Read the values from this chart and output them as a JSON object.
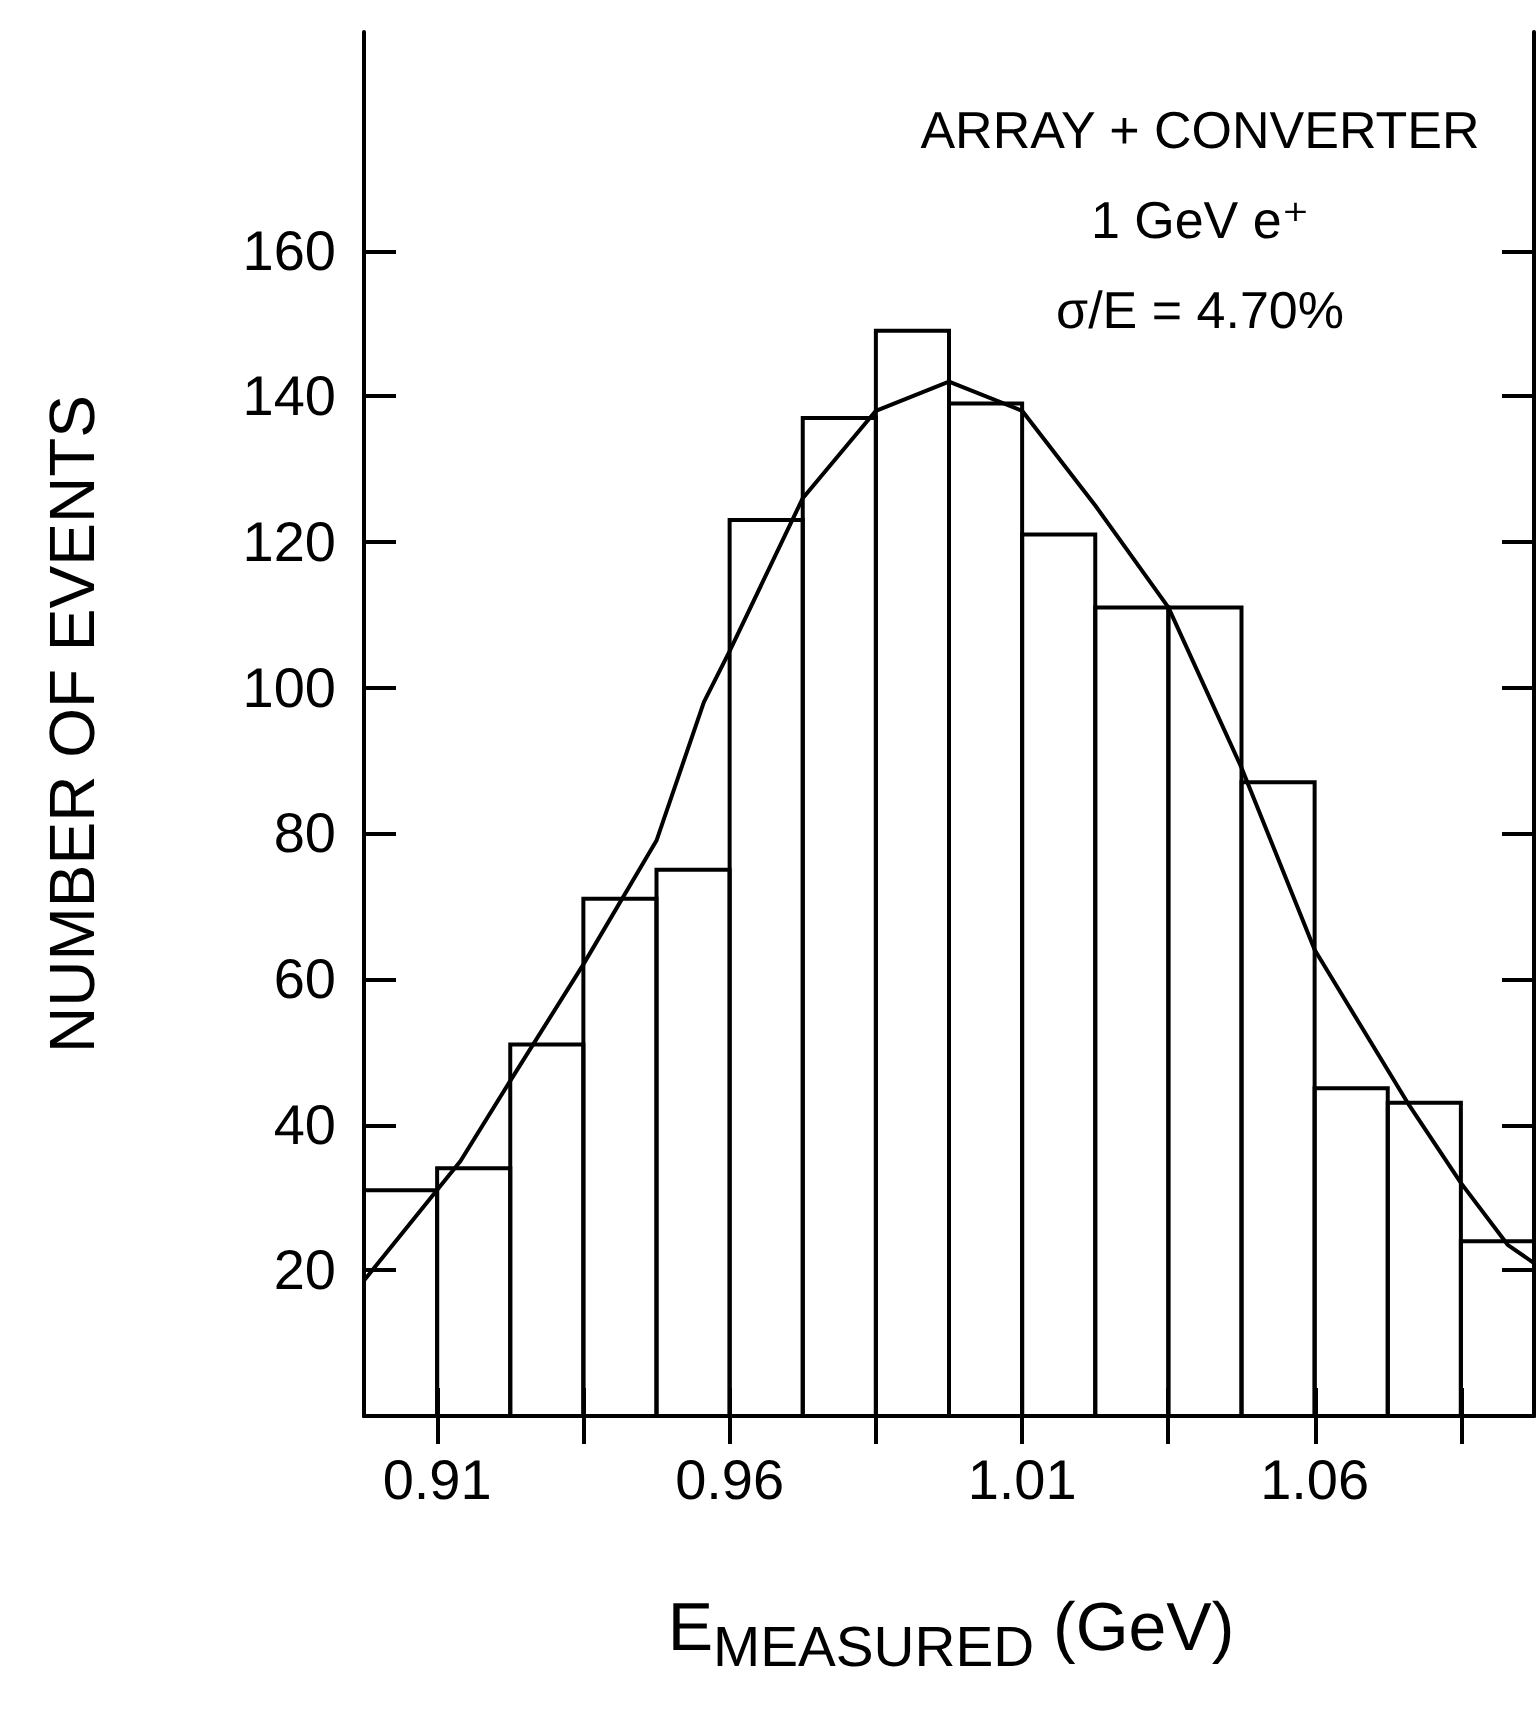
{
  "chart_data": {
    "type": "histogram",
    "xlabel": "E$_{MEASURED}$ (GeV)",
    "ylabel": "NUMBER OF EVENTS",
    "annotations": [
      "ARRAY + CONVERTER",
      "1 GeV e⁺",
      "σ/E = 4.70%"
    ],
    "bins": [
      0.8975,
      0.91,
      0.9225,
      0.935,
      0.9475,
      0.96,
      0.9725,
      0.985,
      0.9975,
      1.01,
      1.0225,
      1.035,
      1.0475,
      1.06,
      1.0725,
      1.085,
      1.0975
    ],
    "values": [
      31,
      34,
      51,
      71,
      75,
      123,
      137,
      149,
      139,
      121,
      111,
      111,
      87,
      45,
      43,
      24
    ],
    "color": "#000000",
    "series": [
      {
        "type": "line",
        "color": "#000000",
        "x": [
          0.8975,
          0.914,
          0.9225,
          0.935,
          0.9475,
          0.9556,
          0.96,
          0.9725,
          0.985,
          0.9975,
          1.01,
          1.0225,
          1.035,
          1.0475,
          1.06,
          1.0759,
          1.085,
          1.093,
          1.0975
        ],
        "values": [
          18.6,
          35,
          46,
          62,
          79,
          98,
          105,
          126,
          138,
          142,
          138,
          125,
          111,
          89,
          64,
          43,
          32,
          23.5,
          21
        ]
      }
    ],
    "xlim": [
      0.8975,
      1.0975
    ],
    "xticks": [
      0.91,
      {
        "value": 0.935,
        "label": null
      },
      0.96,
      {
        "value": 0.985,
        "label": null
      },
      1.01,
      {
        "value": 1.035,
        "label": null
      },
      1.06,
      {
        "value": 1.085,
        "label": null
      }
    ],
    "ylim": [
      0,
      190
    ],
    "yticks": [
      20,
      40,
      60,
      80,
      100,
      120,
      140,
      160
    ]
  }
}
